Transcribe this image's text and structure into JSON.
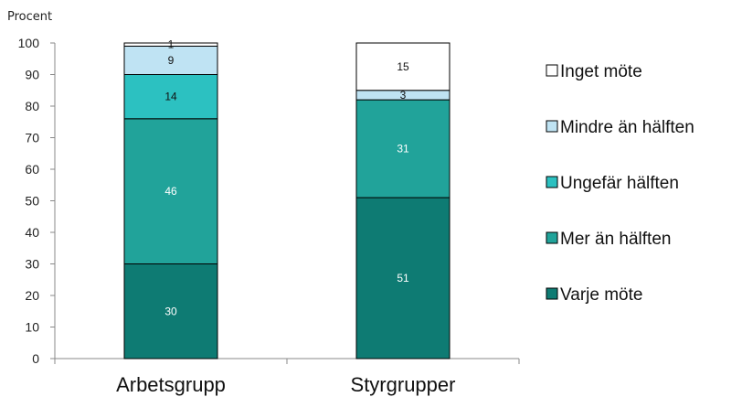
{
  "chart_data": {
    "type": "bar",
    "stacked": true,
    "ylabel": "Procent",
    "ylim": [
      0,
      100
    ],
    "yticks": [
      "0",
      "10",
      "20",
      "30",
      "40",
      "50",
      "60",
      "70",
      "80",
      "90",
      "100"
    ],
    "categories": [
      "Arbetsgrupp",
      "Styrgrupper"
    ],
    "series": [
      {
        "name": "Varje möte",
        "color": "#0e7b73",
        "values": [
          30,
          51
        ]
      },
      {
        "name": "Mer än hälften",
        "color": "#21a39a",
        "values": [
          46,
          31
        ]
      },
      {
        "name": "Ungefär hälften",
        "color": "#2cc1c1",
        "values": [
          14,
          0
        ]
      },
      {
        "name": "Mindre än hälften",
        "color": "#bfe3f3",
        "values": [
          9,
          3
        ]
      },
      {
        "name": "Inget möte",
        "color": "#ffffff",
        "values": [
          1,
          15
        ]
      }
    ],
    "data_labels": [
      [
        "30",
        "51"
      ],
      [
        "46",
        "31"
      ],
      [
        "14",
        ""
      ],
      [
        "9",
        "3"
      ],
      [
        "1",
        "15"
      ]
    ],
    "legend_order": [
      4,
      3,
      2,
      1,
      0
    ],
    "legend_position": "right",
    "grid": false
  }
}
